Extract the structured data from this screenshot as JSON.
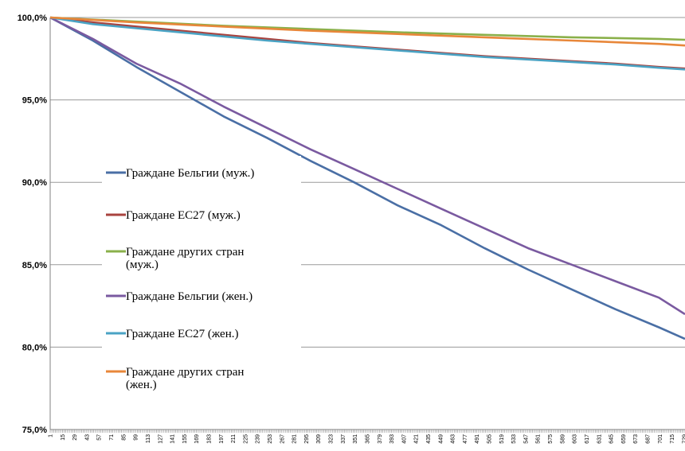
{
  "chart_data": {
    "type": "line",
    "title": "",
    "xlabel": "",
    "ylabel": "",
    "ylim": [
      75,
      100
    ],
    "y_ticks": [
      "75,0%",
      "80,0%",
      "85,0%",
      "90,0%",
      "95,0%",
      "100,0%"
    ],
    "y_tick_values": [
      75,
      80,
      85,
      90,
      95,
      100
    ],
    "x_range": [
      1,
      730
    ],
    "x_tick_labels": [
      "1",
      "15",
      "29",
      "43",
      "57",
      "71",
      "85",
      "99",
      "113",
      "127",
      "141",
      "155",
      "169",
      "183",
      "197",
      "211",
      "225",
      "239",
      "253",
      "267",
      "281",
      "295",
      "309",
      "323",
      "337",
      "351",
      "365",
      "379",
      "393",
      "407",
      "421",
      "435",
      "449",
      "463",
      "477",
      "491",
      "505",
      "519",
      "533",
      "547",
      "561",
      "575",
      "589",
      "603",
      "617",
      "631",
      "645",
      "659",
      "673",
      "687",
      "701",
      "715",
      "729"
    ],
    "grid": "horizontal",
    "legend_position": "left-center",
    "series": [
      {
        "name": "Граждане Бельгии (муж.)",
        "color": "#4a6fa5",
        "points": [
          [
            1,
            100
          ],
          [
            50,
            98.6
          ],
          [
            100,
            97.0
          ],
          [
            150,
            95.5
          ],
          [
            200,
            94.0
          ],
          [
            250,
            92.7
          ],
          [
            300,
            91.3
          ],
          [
            350,
            90.0
          ],
          [
            400,
            88.6
          ],
          [
            450,
            87.4
          ],
          [
            500,
            86.0
          ],
          [
            550,
            84.7
          ],
          [
            600,
            83.5
          ],
          [
            650,
            82.3
          ],
          [
            700,
            81.2
          ],
          [
            730,
            80.5
          ]
        ]
      },
      {
        "name": "Граждане ЕС27 (муж.)",
        "color": "#a9433f",
        "points": [
          [
            1,
            100
          ],
          [
            50,
            99.7
          ],
          [
            100,
            99.45
          ],
          [
            150,
            99.2
          ],
          [
            200,
            98.95
          ],
          [
            250,
            98.7
          ],
          [
            300,
            98.45
          ],
          [
            350,
            98.25
          ],
          [
            400,
            98.05
          ],
          [
            450,
            97.85
          ],
          [
            500,
            97.65
          ],
          [
            550,
            97.5
          ],
          [
            600,
            97.35
          ],
          [
            650,
            97.2
          ],
          [
            700,
            97.0
          ],
          [
            730,
            96.9
          ]
        ]
      },
      {
        "name": "Граждане других стран (муж.)",
        "color": "#8ab04a",
        "points": [
          [
            1,
            100
          ],
          [
            100,
            99.75
          ],
          [
            200,
            99.5
          ],
          [
            300,
            99.3
          ],
          [
            400,
            99.1
          ],
          [
            500,
            98.95
          ],
          [
            600,
            98.8
          ],
          [
            700,
            98.7
          ],
          [
            730,
            98.65
          ]
        ]
      },
      {
        "name": "Граждане Бельгии (жен.)",
        "color": "#7a5aa0",
        "points": [
          [
            1,
            100
          ],
          [
            50,
            98.7
          ],
          [
            100,
            97.2
          ],
          [
            150,
            96.0
          ],
          [
            200,
            94.6
          ],
          [
            250,
            93.3
          ],
          [
            300,
            92.0
          ],
          [
            350,
            90.8
          ],
          [
            400,
            89.6
          ],
          [
            450,
            88.4
          ],
          [
            500,
            87.2
          ],
          [
            550,
            86.0
          ],
          [
            600,
            85.0
          ],
          [
            650,
            84.0
          ],
          [
            700,
            83.0
          ],
          [
            730,
            82.0
          ]
        ]
      },
      {
        "name": "Граждане ЕС27 (жен.)",
        "color": "#4aa3c4",
        "points": [
          [
            1,
            100
          ],
          [
            50,
            99.6
          ],
          [
            100,
            99.35
          ],
          [
            150,
            99.1
          ],
          [
            200,
            98.85
          ],
          [
            250,
            98.6
          ],
          [
            300,
            98.4
          ],
          [
            350,
            98.2
          ],
          [
            400,
            98.0
          ],
          [
            450,
            97.8
          ],
          [
            500,
            97.6
          ],
          [
            550,
            97.45
          ],
          [
            600,
            97.3
          ],
          [
            650,
            97.15
          ],
          [
            700,
            96.95
          ],
          [
            730,
            96.85
          ]
        ]
      },
      {
        "name": "Граждане других стран (жен.)",
        "color": "#e8873a",
        "points": [
          [
            1,
            100
          ],
          [
            100,
            99.7
          ],
          [
            200,
            99.45
          ],
          [
            300,
            99.2
          ],
          [
            400,
            99.0
          ],
          [
            500,
            98.8
          ],
          [
            600,
            98.6
          ],
          [
            700,
            98.4
          ],
          [
            730,
            98.3
          ]
        ]
      }
    ],
    "legend_entries": [
      {
        "lines": [
          "Граждане Бельгии (муж.)"
        ],
        "color": "#4a6fa5"
      },
      {
        "lines": [
          "Граждане ЕС27 (муж.)"
        ],
        "color": "#a9433f"
      },
      {
        "lines": [
          "Граждане других стран",
          "(муж.)"
        ],
        "color": "#8ab04a"
      },
      {
        "lines": [
          "Граждане Бельгии (жен.)"
        ],
        "color": "#7a5aa0"
      },
      {
        "lines": [
          "Граждане ЕС27 (жен.)"
        ],
        "color": "#4aa3c4"
      },
      {
        "lines": [
          "Граждане других стран",
          "(жен.)"
        ],
        "color": "#e8873a"
      }
    ]
  }
}
